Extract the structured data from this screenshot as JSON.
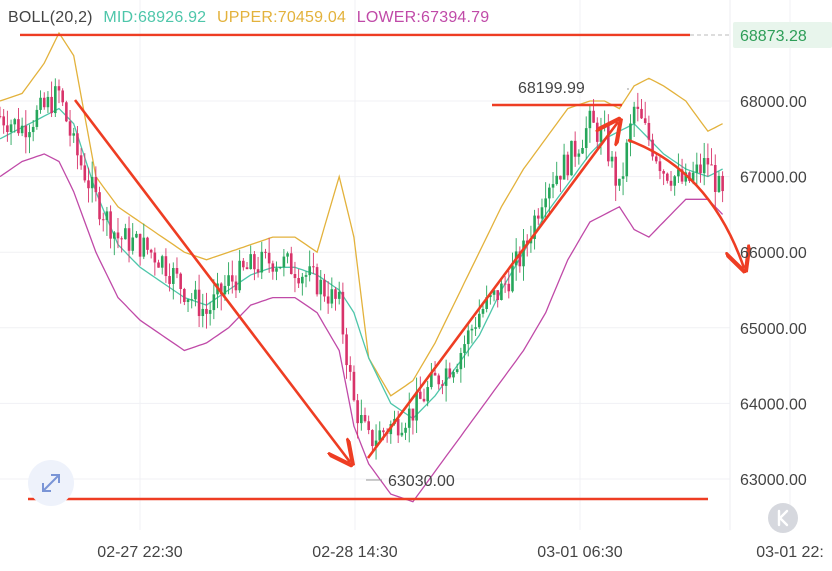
{
  "legend": {
    "name": "BOLL(20,2)",
    "mid_label": "MID:68926.92",
    "upper_label": "UPPER:70459.04",
    "lower_label": "LOWER:67394.79"
  },
  "colors": {
    "mid": "#4ec6aa",
    "upper": "#e3b23c",
    "lower": "#c04aa8",
    "up_candle": "#26a65b",
    "down_candle": "#d8336a",
    "annotation": "#ee3d23",
    "current_price_bg": "#e8f5ec",
    "current_price_text": "#2e9e58"
  },
  "chart_data": {
    "type": "candlestick",
    "indicator": "Bollinger Bands (20,2)",
    "y_ticks": [
      "68000.00",
      "67000.00",
      "66000.00",
      "65000.00",
      "64000.00",
      "63000.00"
    ],
    "y_tick_values": [
      68000,
      67000,
      66000,
      65000,
      64000,
      63000
    ],
    "ylim": [
      62500,
      69500
    ],
    "x_ticks": [
      "02-27 22:30",
      "02-28 14:30",
      "03-01 06:30",
      "03-01 22:"
    ],
    "current_price": "68873.28",
    "current_price_value": 68873.28,
    "price_labels": [
      {
        "text": "68199.99",
        "value": 68199.99
      },
      {
        "text": "63030.00",
        "value": 63030.0
      }
    ],
    "grid": true,
    "candle_trend": [
      [
        0,
        67800
      ],
      [
        6,
        67650
      ],
      [
        12,
        67900
      ],
      [
        16,
        68100
      ],
      [
        20,
        67400
      ],
      [
        26,
        66700
      ],
      [
        32,
        66200
      ],
      [
        38,
        66100
      ],
      [
        44,
        65900
      ],
      [
        50,
        65500
      ],
      [
        56,
        65200
      ],
      [
        62,
        65600
      ],
      [
        68,
        65800
      ],
      [
        74,
        65900
      ],
      [
        80,
        65800
      ],
      [
        86,
        65600
      ],
      [
        92,
        65300
      ],
      [
        96,
        64000
      ],
      [
        100,
        63500
      ],
      [
        106,
        63700
      ],
      [
        112,
        63900
      ],
      [
        118,
        64300
      ],
      [
        124,
        64600
      ],
      [
        130,
        65200
      ],
      [
        136,
        65500
      ],
      [
        142,
        66000
      ],
      [
        148,
        66900
      ],
      [
        154,
        67200
      ],
      [
        160,
        67700
      ],
      [
        164,
        67500
      ],
      [
        168,
        66800
      ],
      [
        172,
        67900
      ],
      [
        176,
        67500
      ],
      [
        180,
        67100
      ],
      [
        186,
        66900
      ],
      [
        192,
        67200
      ],
      [
        196,
        66700
      ]
    ],
    "upper_band": [
      [
        0,
        68000
      ],
      [
        6,
        68100
      ],
      [
        12,
        68500
      ],
      [
        16,
        68900
      ],
      [
        20,
        68600
      ],
      [
        26,
        67000
      ],
      [
        32,
        66600
      ],
      [
        38,
        66400
      ],
      [
        44,
        66200
      ],
      [
        50,
        66000
      ],
      [
        56,
        65900
      ],
      [
        62,
        66000
      ],
      [
        68,
        66100
      ],
      [
        74,
        66200
      ],
      [
        80,
        66200
      ],
      [
        86,
        66000
      ],
      [
        92,
        67000
      ],
      [
        96,
        66200
      ],
      [
        100,
        64600
      ],
      [
        106,
        64100
      ],
      [
        112,
        64300
      ],
      [
        118,
        64800
      ],
      [
        124,
        65400
      ],
      [
        130,
        66000
      ],
      [
        136,
        66600
      ],
      [
        142,
        67100
      ],
      [
        148,
        67500
      ],
      [
        154,
        67900
      ],
      [
        160,
        68000
      ],
      [
        164,
        68000
      ],
      [
        168,
        67900
      ],
      [
        172,
        68200
      ],
      [
        176,
        68300
      ],
      [
        180,
        68200
      ],
      [
        186,
        68000
      ],
      [
        192,
        67600
      ],
      [
        196,
        67700
      ]
    ],
    "mid_band": [
      [
        0,
        67500
      ],
      [
        6,
        67650
      ],
      [
        12,
        67800
      ],
      [
        16,
        67900
      ],
      [
        20,
        67700
      ],
      [
        26,
        66800
      ],
      [
        32,
        66100
      ],
      [
        38,
        65800
      ],
      [
        44,
        65600
      ],
      [
        50,
        65400
      ],
      [
        56,
        65300
      ],
      [
        62,
        65500
      ],
      [
        68,
        65700
      ],
      [
        74,
        65800
      ],
      [
        80,
        65800
      ],
      [
        86,
        65700
      ],
      [
        92,
        65500
      ],
      [
        96,
        65200
      ],
      [
        100,
        64600
      ],
      [
        106,
        64000
      ],
      [
        112,
        63800
      ],
      [
        118,
        64100
      ],
      [
        124,
        64500
      ],
      [
        130,
        64900
      ],
      [
        136,
        65500
      ],
      [
        142,
        66000
      ],
      [
        148,
        66500
      ],
      [
        154,
        66900
      ],
      [
        160,
        67300
      ],
      [
        164,
        67500
      ],
      [
        168,
        67600
      ],
      [
        172,
        67700
      ],
      [
        176,
        67500
      ],
      [
        180,
        67300
      ],
      [
        186,
        67100
      ],
      [
        192,
        67000
      ],
      [
        196,
        67100
      ]
    ],
    "lower_band": [
      [
        0,
        67000
      ],
      [
        6,
        67200
      ],
      [
        12,
        67300
      ],
      [
        16,
        67200
      ],
      [
        20,
        66800
      ],
      [
        26,
        66000
      ],
      [
        32,
        65400
      ],
      [
        38,
        65100
      ],
      [
        44,
        64900
      ],
      [
        50,
        64700
      ],
      [
        56,
        64800
      ],
      [
        62,
        65000
      ],
      [
        68,
        65300
      ],
      [
        74,
        65400
      ],
      [
        80,
        65400
      ],
      [
        86,
        65200
      ],
      [
        92,
        64700
      ],
      [
        96,
        63700
      ],
      [
        100,
        63200
      ],
      [
        106,
        62800
      ],
      [
        112,
        62700
      ],
      [
        118,
        63100
      ],
      [
        124,
        63500
      ],
      [
        130,
        63900
      ],
      [
        136,
        64300
      ],
      [
        142,
        64700
      ],
      [
        148,
        65200
      ],
      [
        154,
        65900
      ],
      [
        160,
        66400
      ],
      [
        164,
        66500
      ],
      [
        168,
        66600
      ],
      [
        172,
        66300
      ],
      [
        176,
        66200
      ],
      [
        180,
        66400
      ],
      [
        186,
        66700
      ],
      [
        192,
        66700
      ],
      [
        196,
        66500
      ]
    ],
    "annotations": [
      {
        "type": "horizontal",
        "value": 68873.28
      },
      {
        "type": "horizontal",
        "value": 62780
      },
      {
        "type": "horizontal-short",
        "value": 68199.99
      },
      {
        "type": "arrow",
        "from": [
          18,
          68000
        ],
        "to": [
          96,
          63100
        ]
      },
      {
        "type": "arrow",
        "from": [
          101,
          63200
        ],
        "to": [
          166,
          67800
        ]
      },
      {
        "type": "arrow-curve",
        "from": [
          168,
          67500
        ],
        "to": [
          198,
          66000
        ]
      }
    ]
  }
}
